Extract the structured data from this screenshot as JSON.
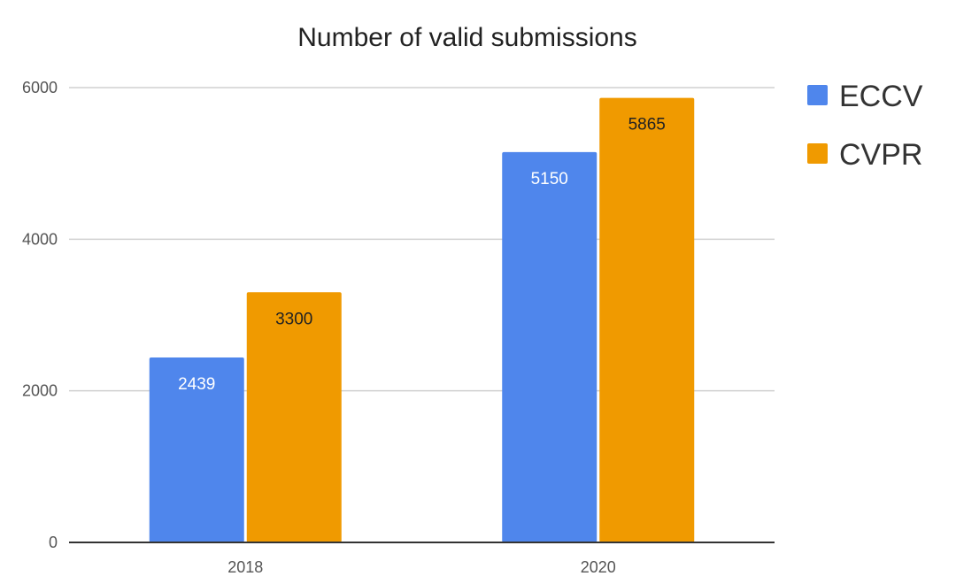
{
  "chart_data": {
    "type": "bar",
    "title": "Number of valid submissions",
    "xlabel": "",
    "ylabel": "",
    "categories": [
      "2018",
      "2020"
    ],
    "series": [
      {
        "name": "ECCV",
        "values": [
          2439,
          5150
        ],
        "color": "#4f86ec",
        "label_color": "#ffffff"
      },
      {
        "name": "CVPR",
        "values": [
          3300,
          5865
        ],
        "color": "#f09a00",
        "label_color": "#222222"
      }
    ],
    "ylim": [
      0,
      6000
    ],
    "y_ticks": [
      0,
      2000,
      4000,
      6000
    ],
    "grid": true,
    "legend_position": "right",
    "gridline_color": "#d0d0d0",
    "axis_color": "#333333"
  }
}
